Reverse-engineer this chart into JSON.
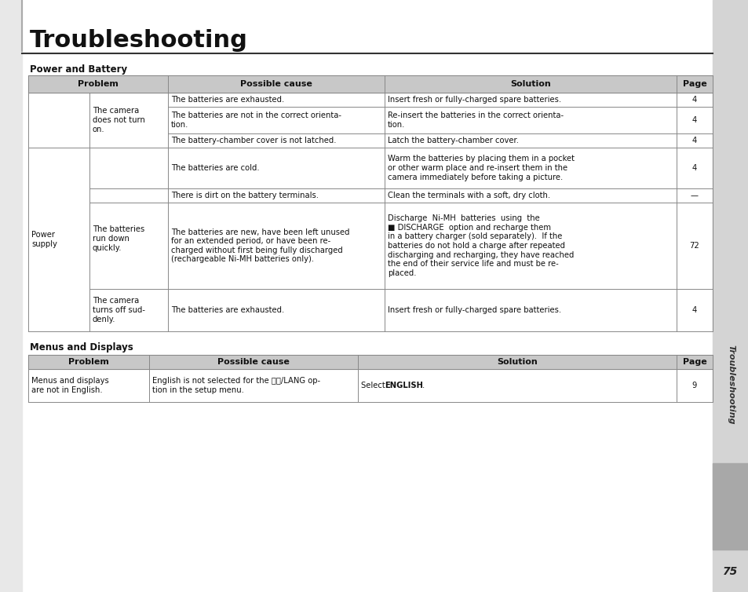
{
  "title": "Troubleshooting",
  "section1": "Power and Battery",
  "section2": "Menus and Displays",
  "sidebar_text": "Troubleshooting",
  "page_number": "75",
  "bg_color": "#ffffff",
  "header_bg": "#c8c8c8",
  "sidebar_light": "#d8d8d8",
  "sidebar_dark": "#a8a8a8",
  "left_strip_color": "#e8e8e8",
  "text_color": "#111111",
  "line_color": "#888888",
  "title_fontsize": 22,
  "section_fontsize": 8.5,
  "header_fontsize": 8,
  "cell_fontsize": 7.2,
  "page_num_fontsize": 10
}
